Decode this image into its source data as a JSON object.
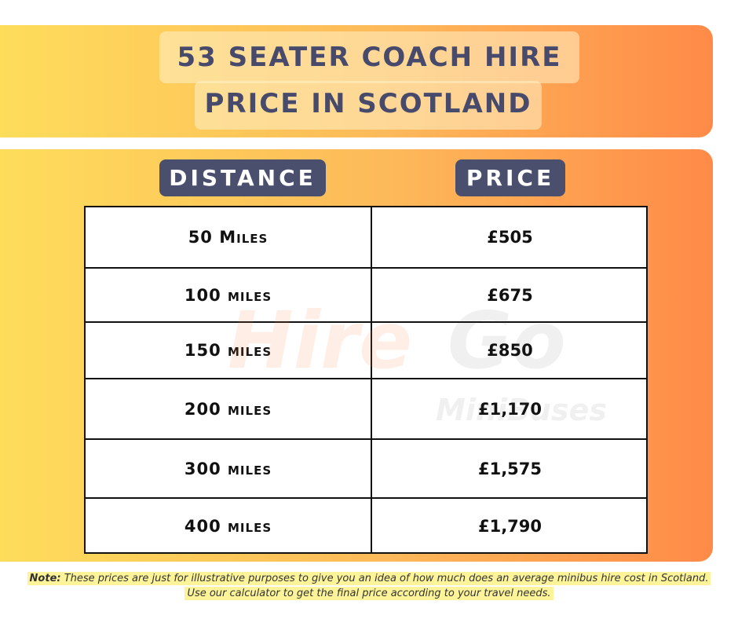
{
  "header": {
    "title_lines": [
      "53 SEATER COACH HIRE",
      "PRICE IN SCOTLAND"
    ]
  },
  "table": {
    "columns": [
      "DISTANCE",
      "PRICE"
    ],
    "rows": [
      [
        "50 Miles",
        "£505"
      ],
      [
        "100 miles",
        "£675"
      ],
      [
        "150 miles",
        "£850"
      ],
      [
        "200 miles",
        "£1,170"
      ],
      [
        "300 miles",
        "£1,575"
      ],
      [
        "400 miles",
        "£1,790"
      ]
    ]
  },
  "watermark": {
    "brand": [
      "Hire",
      "Go"
    ],
    "tagline": "MiniBuses"
  },
  "note": {
    "label": "Note:",
    "lines": [
      "These prices are just for illustrative purposes to give you an idea of how much does an average minibus hire cost in Scotland.",
      "Use our calculator to get the final price according to your travel needs."
    ]
  }
}
